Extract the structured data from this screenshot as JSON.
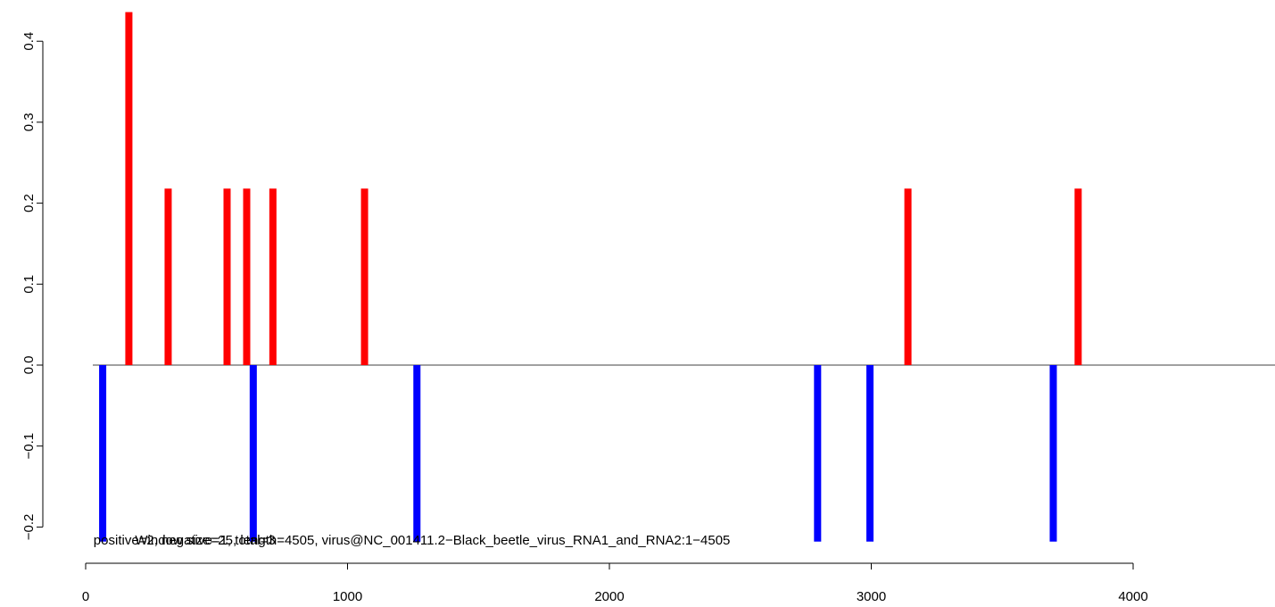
{
  "chart_data": {
    "type": "bar",
    "title": "",
    "xlabel": "",
    "ylabel": "",
    "xlim": [
      0,
      4505
    ],
    "ylim": [
      -0.22,
      0.44
    ],
    "x_ticks": [
      0,
      1000,
      2000,
      3000,
      4000
    ],
    "x_tick_labels": [
      "0",
      "1000",
      "2000",
      "3000",
      "4000"
    ],
    "y_ticks": [
      -0.2,
      -0.1,
      0.0,
      0.1,
      0.2,
      0.3,
      0.4
    ],
    "y_tick_labels": [
      "−0.2",
      "−0.1",
      "0.0",
      "0.1",
      "0.2",
      "0.3",
      "0.4"
    ],
    "grid": false,
    "series": [
      {
        "color": "#ff0000",
        "points": [
          {
            "x": 165,
            "y": 0.436
          },
          {
            "x": 315,
            "y": 0.218
          },
          {
            "x": 540,
            "y": 0.218
          },
          {
            "x": 615,
            "y": 0.218
          },
          {
            "x": 715,
            "y": 0.218
          },
          {
            "x": 1065,
            "y": 0.218
          },
          {
            "x": 3140,
            "y": 0.218
          },
          {
            "x": 3790,
            "y": 0.218
          }
        ]
      },
      {
        "color": "#0000ff",
        "points": [
          {
            "x": 65,
            "y": -0.218
          },
          {
            "x": 640,
            "y": -0.218
          },
          {
            "x": 1265,
            "y": -0.218
          },
          {
            "x": 2795,
            "y": -0.218
          },
          {
            "x": 2995,
            "y": -0.218
          },
          {
            "x": 3695,
            "y": -0.218
          }
        ]
      }
    ],
    "annotations": [
      {
        "text": "positive=2, negative=1, total=3",
        "x": 30,
        "y": -0.215
      },
      {
        "text": "Window size=25, length=4505, virus@NC_001411.2−Black_beetle_virus_RNA1_and_RNA2:1−4505",
        "x": 1325,
        "y": -0.215
      }
    ]
  }
}
